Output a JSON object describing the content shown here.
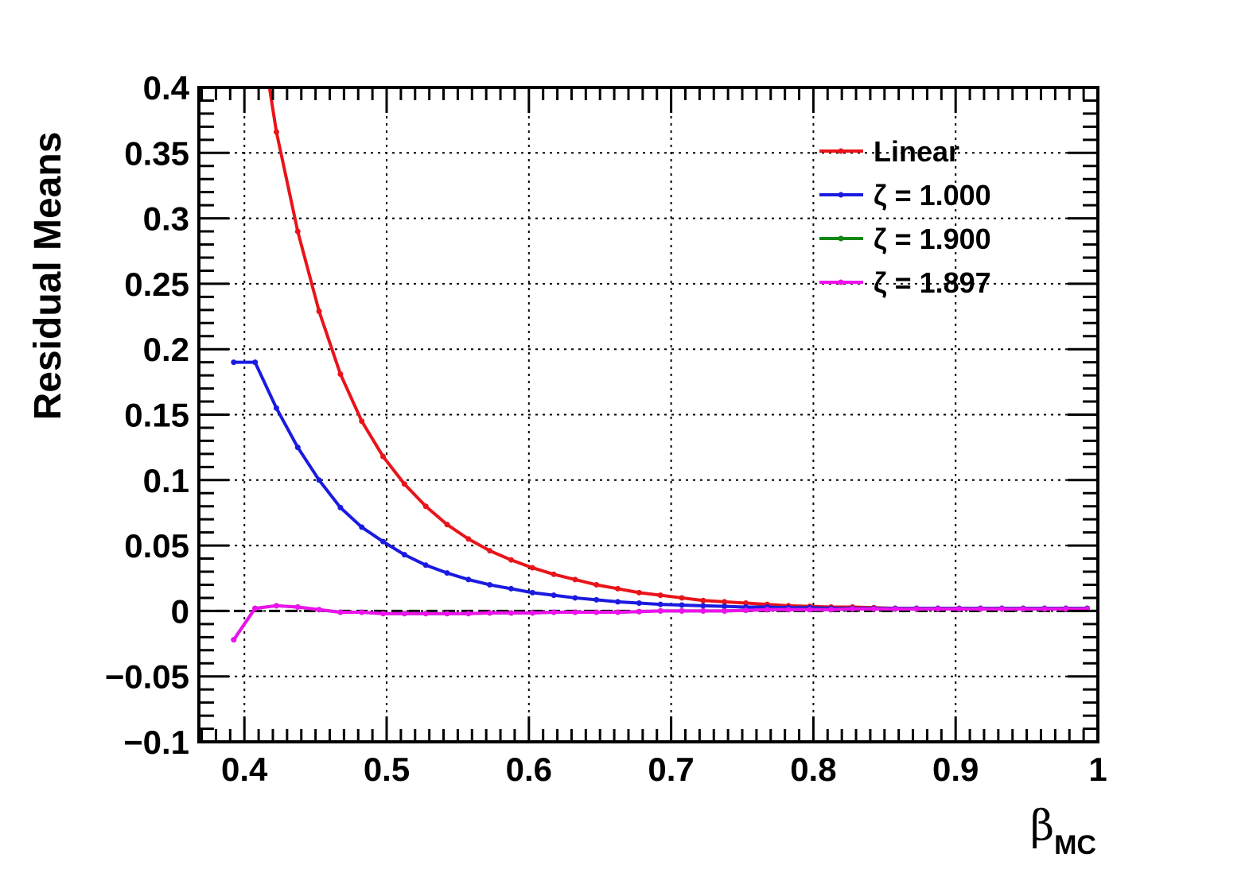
{
  "chart_data": {
    "type": "line",
    "title": "",
    "ylabel": "Residual Means",
    "xlabel": {
      "symbol": "β",
      "subscript": "MC"
    },
    "xlim": [
      0.368,
      1.0
    ],
    "ylim": [
      -0.1,
      0.4
    ],
    "xticks": [
      0.4,
      0.5,
      0.6,
      0.7,
      0.8,
      0.9,
      1.0
    ],
    "xtick_labels": [
      "0.4",
      "0.5",
      "0.6",
      "0.7",
      "0.8",
      "0.9",
      "1"
    ],
    "yticks": [
      -0.1,
      -0.05,
      0,
      0.05,
      0.1,
      0.15,
      0.2,
      0.25,
      0.3,
      0.35,
      0.4
    ],
    "ytick_labels": [
      "−0.1",
      "−0.05",
      "0",
      "0.05",
      "0.1",
      "0.15",
      "0.2",
      "0.25",
      "0.3",
      "0.35",
      "0.4"
    ],
    "grid": true,
    "zero_line": true,
    "legend_position": "top-right",
    "series": [
      {
        "name": "Linear",
        "color": "#e8141a",
        "x": [
          0.4075,
          0.4225,
          0.4375,
          0.4525,
          0.4675,
          0.4825,
          0.4975,
          0.5125,
          0.5275,
          0.5425,
          0.5575,
          0.5725,
          0.5875,
          0.6025,
          0.6175,
          0.6325,
          0.6475,
          0.6625,
          0.6775,
          0.6925,
          0.7075,
          0.7225,
          0.7375,
          0.7525,
          0.7675,
          0.7825,
          0.7975,
          0.8125,
          0.8275,
          0.8425,
          0.8575,
          0.8725,
          0.8875,
          0.9025,
          0.9175,
          0.9325,
          0.9475,
          0.9625,
          0.9775,
          0.9925
        ],
        "y": [
          0.47,
          0.366,
          0.29,
          0.229,
          0.181,
          0.145,
          0.118,
          0.097,
          0.08,
          0.066,
          0.055,
          0.046,
          0.039,
          0.033,
          0.028,
          0.024,
          0.02,
          0.017,
          0.014,
          0.012,
          0.01,
          0.008,
          0.007,
          0.006,
          0.005,
          0.004,
          0.0035,
          0.003,
          0.003,
          0.0025,
          0.002,
          0.002,
          0.002,
          0.002,
          0.002,
          0.002,
          0.002,
          0.002,
          0.002,
          0.002
        ]
      },
      {
        "name": "ζ = 1.000",
        "color": "#1a1ae0",
        "x": [
          0.3925,
          0.4075,
          0.4225,
          0.4375,
          0.4525,
          0.4675,
          0.4825,
          0.4975,
          0.5125,
          0.5275,
          0.5425,
          0.5575,
          0.5725,
          0.5875,
          0.6025,
          0.6175,
          0.6325,
          0.6475,
          0.6625,
          0.6775,
          0.6925,
          0.7075,
          0.7225,
          0.7375,
          0.7525,
          0.7675,
          0.7825,
          0.7975,
          0.8125,
          0.8275,
          0.8425,
          0.8575,
          0.8725,
          0.8875,
          0.9025,
          0.9175,
          0.9325,
          0.9475,
          0.9625,
          0.9775,
          0.9925
        ],
        "y": [
          0.19,
          0.19,
          0.155,
          0.125,
          0.1,
          0.079,
          0.064,
          0.053,
          0.043,
          0.035,
          0.029,
          0.024,
          0.02,
          0.017,
          0.014,
          0.012,
          0.01,
          0.0085,
          0.007,
          0.006,
          0.005,
          0.0045,
          0.004,
          0.0035,
          0.003,
          0.003,
          0.0025,
          0.0025,
          0.002,
          0.002,
          0.002,
          0.002,
          0.002,
          0.002,
          0.002,
          0.002,
          0.002,
          0.002,
          0.002,
          0.002,
          0.002
        ]
      },
      {
        "name": "ζ = 1.900",
        "color": "#118811",
        "x": [
          0.3925,
          0.4075,
          0.4225,
          0.4375,
          0.4525,
          0.4675,
          0.4825,
          0.4975,
          0.5125,
          0.5275,
          0.5425,
          0.5575,
          0.5725,
          0.5875,
          0.6025,
          0.6175,
          0.6325,
          0.6475,
          0.6625,
          0.6775,
          0.6925,
          0.7075,
          0.7225,
          0.7375,
          0.7525,
          0.7675,
          0.7825,
          0.7975,
          0.8125,
          0.8275,
          0.8425,
          0.8575,
          0.8725,
          0.8875,
          0.9025,
          0.9175,
          0.9325,
          0.9475,
          0.9625,
          0.9775,
          0.9925
        ],
        "y": [
          -0.022,
          0.002,
          0.004,
          0.003,
          0.001,
          -0.001,
          -0.001,
          -0.002,
          -0.002,
          -0.002,
          -0.002,
          -0.002,
          -0.0015,
          -0.0015,
          -0.0015,
          -0.001,
          -0.001,
          -0.001,
          -0.001,
          -0.0005,
          0.0,
          0.0,
          0.0,
          0.0,
          0.0005,
          0.001,
          0.001,
          0.001,
          0.001,
          0.0015,
          0.0015,
          0.0015,
          0.0015,
          0.0015,
          0.0015,
          0.0015,
          0.0015,
          0.0015,
          0.0015,
          0.0015,
          0.0015
        ]
      },
      {
        "name": "ζ = 1.897",
        "color": "#ee11ee",
        "x": [
          0.3925,
          0.4075,
          0.4225,
          0.4375,
          0.4525,
          0.4675,
          0.4825,
          0.4975,
          0.5125,
          0.5275,
          0.5425,
          0.5575,
          0.5725,
          0.5875,
          0.6025,
          0.6175,
          0.6325,
          0.6475,
          0.6625,
          0.6775,
          0.6925,
          0.7075,
          0.7225,
          0.7375,
          0.7525,
          0.7675,
          0.7825,
          0.7975,
          0.8125,
          0.8275,
          0.8425,
          0.8575,
          0.8725,
          0.8875,
          0.9025,
          0.9175,
          0.9325,
          0.9475,
          0.9625,
          0.9775,
          0.9925
        ],
        "y": [
          -0.022,
          0.002,
          0.004,
          0.003,
          0.001,
          -0.001,
          -0.001,
          -0.002,
          -0.002,
          -0.002,
          -0.002,
          -0.002,
          -0.0015,
          -0.0015,
          -0.0015,
          -0.001,
          -0.001,
          -0.001,
          -0.001,
          -0.0005,
          0.0,
          0.0,
          0.0,
          0.0,
          0.0005,
          0.001,
          0.001,
          0.001,
          0.001,
          0.0015,
          0.0015,
          0.0015,
          0.0015,
          0.0015,
          0.0015,
          0.0015,
          0.0015,
          0.0015,
          0.0015,
          0.0015,
          0.0015
        ]
      }
    ]
  }
}
